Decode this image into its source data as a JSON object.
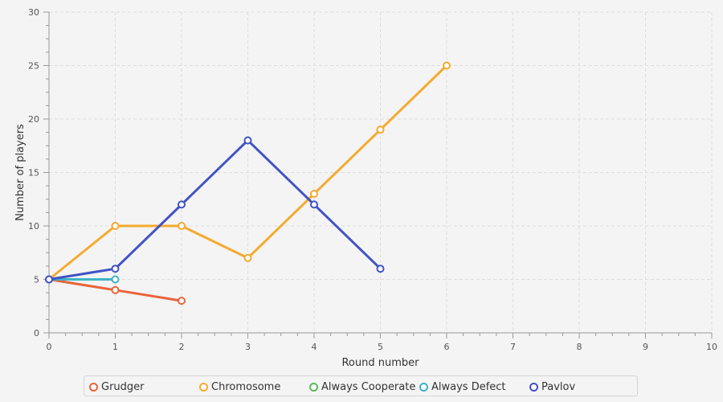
{
  "chart_data": {
    "type": "line",
    "xlabel": "Round number",
    "ylabel": "Number of players",
    "xlim": [
      0,
      10
    ],
    "ylim": [
      0,
      30
    ],
    "x_ticks": [
      0,
      1,
      2,
      3,
      4,
      5,
      6,
      7,
      8,
      9,
      10
    ],
    "y_ticks": [
      0,
      5,
      10,
      15,
      20,
      25,
      30
    ],
    "grid": true,
    "legend_position": "bottom",
    "series": [
      {
        "name": "Grudger",
        "color": "#e8643a",
        "x": [
          0,
          1,
          2
        ],
        "y": [
          5,
          4,
          3
        ]
      },
      {
        "name": "Chromosome",
        "color": "#f5aa2e",
        "x": [
          0,
          1,
          2,
          3,
          4,
          5,
          6
        ],
        "y": [
          5,
          10,
          10,
          7,
          13,
          19,
          25
        ]
      },
      {
        "name": "Always Cooperate",
        "color": "#5cb85c",
        "x": [],
        "y": []
      },
      {
        "name": "Always Defect",
        "color": "#3fb3c4",
        "x": [
          0,
          1
        ],
        "y": [
          5,
          5
        ]
      },
      {
        "name": "Pavlov",
        "color": "#4153c4",
        "x": [
          0,
          1,
          2,
          3,
          4,
          5
        ],
        "y": [
          5,
          6,
          12,
          18,
          12,
          6
        ]
      }
    ]
  }
}
